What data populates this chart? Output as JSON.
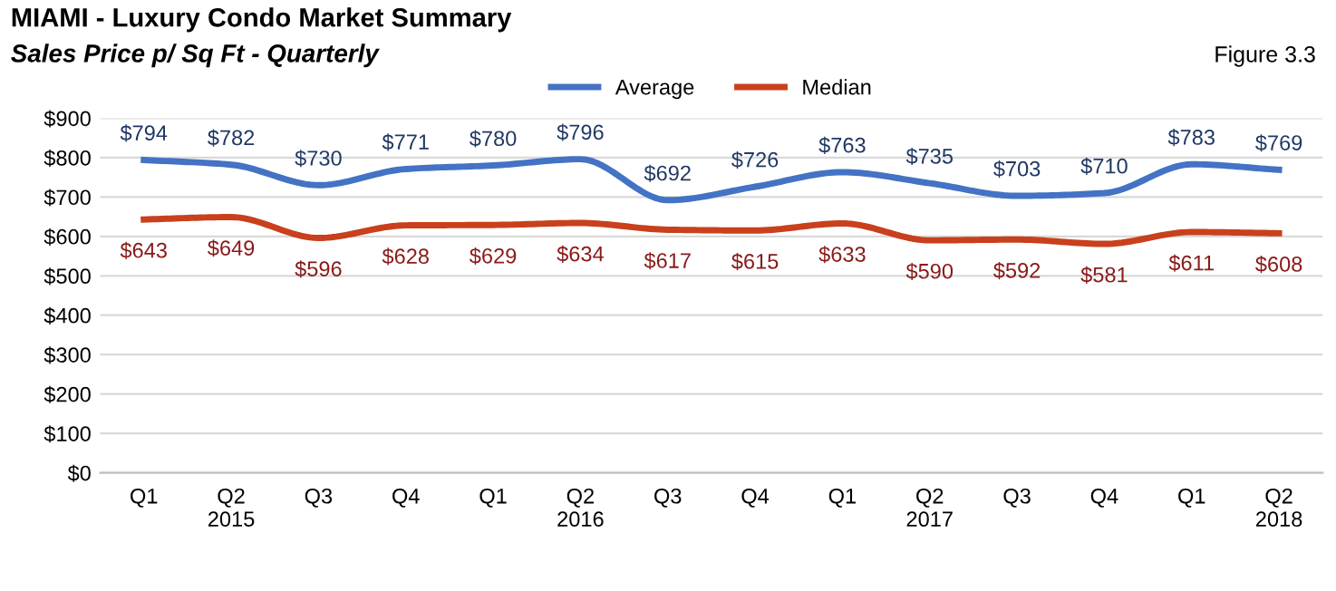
{
  "chart_data": {
    "type": "line",
    "title": "MIAMI - Luxury Condo Market Summary",
    "subtitle": "Sales Price p/ Sq Ft - Quarterly",
    "annotations": [
      "Figure 3.3"
    ],
    "categories": [
      "Q1",
      "Q2\n2015",
      "Q3",
      "Q4",
      "Q1",
      "Q2\n2016",
      "Q3",
      "Q4",
      "Q1",
      "Q2\n2017",
      "Q3",
      "Q4",
      "Q1",
      "Q2\n2018"
    ],
    "series": [
      {
        "name": "Average",
        "color": "#4472c4",
        "values": [
          794,
          782,
          730,
          771,
          780,
          796,
          692,
          726,
          763,
          735,
          703,
          710,
          783,
          769
        ],
        "value_labels": [
          "$794",
          "$782",
          "$730",
          "$771",
          "$780",
          "$796",
          "$692",
          "$726",
          "$763",
          "$735",
          "$703",
          "$710",
          "$783",
          "$769"
        ]
      },
      {
        "name": "Median",
        "color": "#c9401c",
        "values": [
          643,
          649,
          596,
          628,
          629,
          634,
          617,
          615,
          633,
          590,
          592,
          581,
          611,
          608
        ],
        "value_labels": [
          "$643",
          "$649",
          "$596",
          "$628",
          "$629",
          "$634",
          "$617",
          "$615",
          "$633",
          "$590",
          "$592",
          "$581",
          "$611",
          "$608"
        ]
      }
    ],
    "ylim": [
      0,
      900
    ],
    "yticks": [
      {
        "value": 0,
        "label": "$0"
      },
      {
        "value": 100,
        "label": "$100"
      },
      {
        "value": 200,
        "label": "$200"
      },
      {
        "value": 300,
        "label": "$300"
      },
      {
        "value": 400,
        "label": "$400"
      },
      {
        "value": 500,
        "label": "$500"
      },
      {
        "value": 600,
        "label": "$600"
      },
      {
        "value": 700,
        "label": "$700"
      },
      {
        "value": 800,
        "label": "$800"
      },
      {
        "value": 900,
        "label": "$900"
      }
    ],
    "grid": "y",
    "legend": "top",
    "marker": "none",
    "line_style": "solid"
  }
}
